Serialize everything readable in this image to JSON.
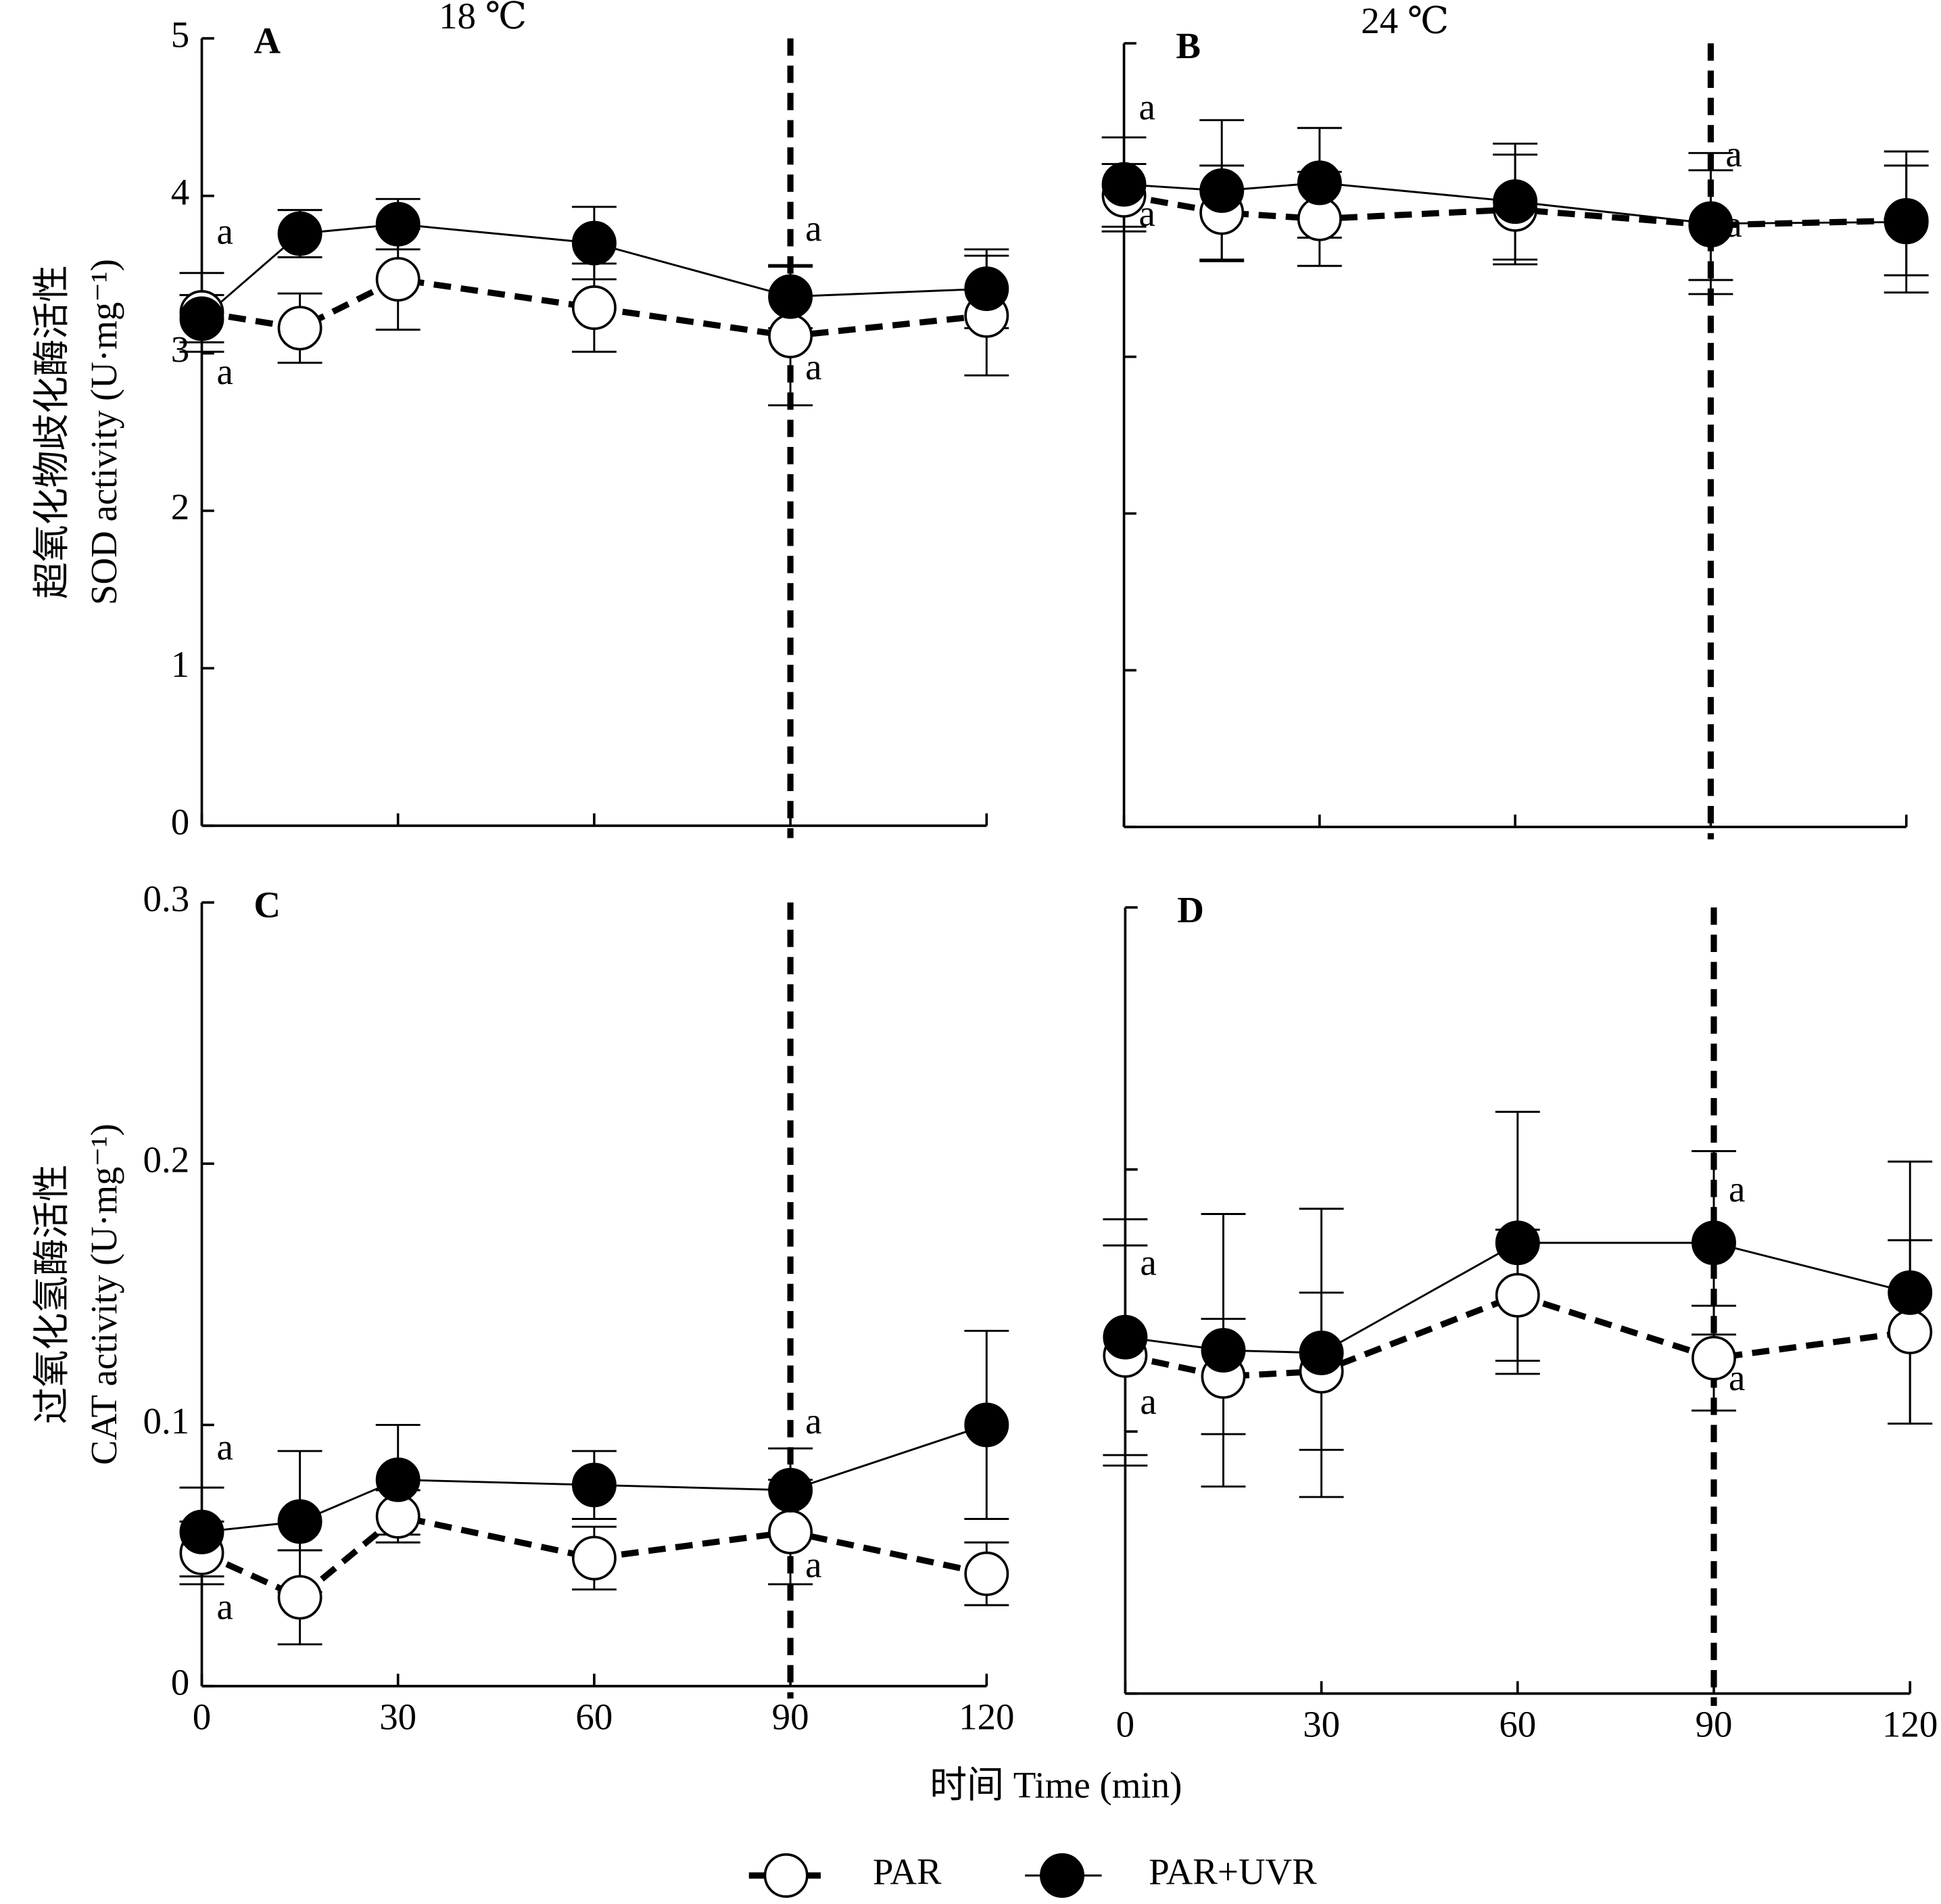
{
  "chart_data": [
    {
      "type": "line",
      "panel": "A",
      "title": "18 ℃",
      "ylabel": [
        "超氧化物歧化酶活性",
        "SOD activity (U·mg⁻¹)"
      ],
      "x": [
        0,
        15,
        30,
        60,
        90,
        120
      ],
      "xlim": [
        0,
        120
      ],
      "xticks": [
        0,
        30,
        60,
        90,
        120
      ],
      "xtick_labels": false,
      "ylim": [
        0,
        5
      ],
      "yticks": [
        0,
        1,
        2,
        3,
        4,
        5
      ],
      "ytick_labels": true,
      "vline": 90,
      "series": [
        {
          "name": "PAR",
          "color": "#000000",
          "marker": "open",
          "dashed": true,
          "values": [
            3.26,
            3.16,
            3.47,
            3.29,
            3.11,
            3.24
          ],
          "errors": [
            0.25,
            0.22,
            0.32,
            0.28,
            0.44,
            0.38
          ]
        },
        {
          "name": "PAR+UVR",
          "color": "#000000",
          "marker": "filled",
          "dashed": false,
          "values": [
            3.22,
            3.76,
            3.82,
            3.7,
            3.36,
            3.41
          ],
          "errors": [
            0.15,
            0.15,
            0.16,
            0.23,
            0.2,
            0.25
          ]
        }
      ],
      "annotations": [
        {
          "text": "a",
          "x": 0,
          "y": 3.75
        },
        {
          "text": "a",
          "x": 0,
          "y": 2.86
        },
        {
          "text": "a",
          "x": 90,
          "y": 3.77
        },
        {
          "text": "a",
          "x": 90,
          "y": 2.89
        }
      ]
    },
    {
      "type": "line",
      "panel": "B",
      "title": "24 ℃",
      "x": [
        0,
        15,
        30,
        60,
        90,
        120
      ],
      "xlim": [
        0,
        120
      ],
      "xticks": [
        0,
        30,
        60,
        90,
        120
      ],
      "xtick_labels": false,
      "ylim": [
        0,
        5
      ],
      "yticks": [
        0,
        1,
        2,
        3,
        4,
        5
      ],
      "ytick_labels": false,
      "vline": 90,
      "series": [
        {
          "color": "#000000",
          "marker": "open",
          "dashed": true,
          "values": [
            4.03,
            3.92,
            3.88,
            3.94,
            3.84,
            3.87
          ],
          "errors": [
            0.2,
            0.3,
            0.3,
            0.35,
            0.35,
            0.35
          ]
        },
        {
          "color": "#000000",
          "marker": "filled",
          "dashed": false,
          "values": [
            4.1,
            4.06,
            4.11,
            3.99,
            3.85,
            3.86
          ],
          "errors": [
            0.3,
            0.45,
            0.35,
            0.37,
            0.45,
            0.45
          ]
        }
      ],
      "annotations": [
        {
          "text": "a",
          "x": 0,
          "y": 4.57
        },
        {
          "text": "a",
          "x": 0,
          "y": 3.89
        },
        {
          "text": "a",
          "x": 90,
          "y": 4.27
        },
        {
          "text": "a",
          "x": 90,
          "y": 3.82
        }
      ]
    },
    {
      "type": "line",
      "panel": "C",
      "ylabel": [
        "过氧化氢酶活性",
        "CAT activity (U·mg⁻¹)"
      ],
      "x": [
        0,
        15,
        30,
        60,
        90,
        120
      ],
      "xlim": [
        0,
        120
      ],
      "xticks": [
        0,
        30,
        60,
        90,
        120
      ],
      "xtick_labels": true,
      "ylim": [
        0,
        0.3
      ],
      "yticks": [
        0,
        0.1,
        0.2,
        0.3
      ],
      "ytick_labels": true,
      "vline": 90,
      "series": [
        {
          "color": "#000000",
          "marker": "open",
          "dashed": true,
          "values": [
            0.051,
            0.034,
            0.065,
            0.049,
            0.059,
            0.043
          ],
          "errors": [
            0.012,
            0.018,
            0.01,
            0.012,
            0.02,
            0.012
          ]
        },
        {
          "color": "#000000",
          "marker": "filled",
          "dashed": false,
          "values": [
            0.059,
            0.063,
            0.079,
            0.077,
            0.075,
            0.1
          ],
          "errors": [
            0.017,
            0.027,
            0.021,
            0.013,
            0.016,
            0.036
          ]
        }
      ],
      "annotations": [
        {
          "text": "a",
          "x": 0,
          "y": 0.09
        },
        {
          "text": "a",
          "x": 0,
          "y": 0.029
        },
        {
          "text": "a",
          "x": 90,
          "y": 0.1
        },
        {
          "text": "a",
          "x": 90,
          "y": 0.045
        }
      ]
    },
    {
      "type": "line",
      "panel": "D",
      "x": [
        0,
        15,
        30,
        60,
        90,
        120
      ],
      "xlim": [
        0,
        120
      ],
      "xticks": [
        0,
        30,
        60,
        90,
        120
      ],
      "xtick_labels": true,
      "ylim": [
        0,
        0.3
      ],
      "yticks": [
        0,
        0.1,
        0.2,
        0.3
      ],
      "ytick_labels": false,
      "vline": 90,
      "series": [
        {
          "color": "#000000",
          "marker": "open",
          "dashed": true,
          "values": [
            0.129,
            0.121,
            0.123,
            0.152,
            0.128,
            0.138
          ],
          "errors": [
            0.042,
            0.022,
            0.03,
            0.025,
            0.02,
            0.035
          ]
        },
        {
          "color": "#000000",
          "marker": "filled",
          "dashed": false,
          "values": [
            0.136,
            0.131,
            0.13,
            0.172,
            0.172,
            0.153
          ],
          "errors": [
            0.045,
            0.052,
            0.055,
            0.05,
            0.035,
            0.05
          ]
        }
      ],
      "annotations": [
        {
          "text": "a",
          "x": 0,
          "y": 0.163
        },
        {
          "text": "a",
          "x": 0,
          "y": 0.11
        },
        {
          "text": "a",
          "x": 90,
          "y": 0.191
        },
        {
          "text": "a",
          "x": 90,
          "y": 0.119
        }
      ]
    }
  ],
  "xlabel": "时间 Time (min)"
}
